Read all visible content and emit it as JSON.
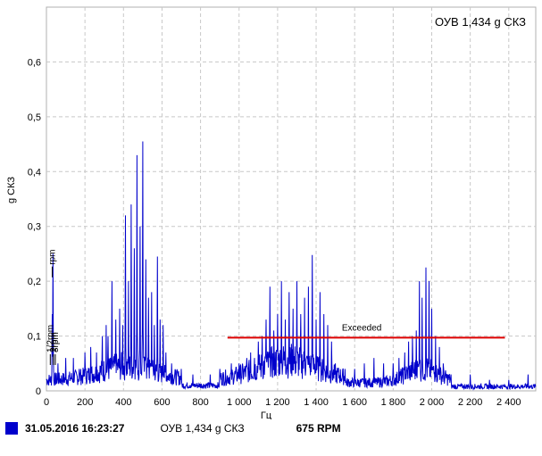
{
  "header": {
    "overall_label": "ОУВ 1,434 g СКЗ"
  },
  "status_bar": {
    "date": "31.05.2016 16:23:27",
    "overall": "ОУВ 1,434 g СКЗ",
    "rpm": "675 RPM",
    "swatch_color": "#0000cc"
  },
  "chart_data": {
    "type": "line",
    "xlabel": "Гц",
    "ylabel": "g СКЗ",
    "xlim": [
      0,
      2540
    ],
    "ylim": [
      0,
      0.7
    ],
    "x_ticks": [
      0,
      200,
      400,
      600,
      800,
      1000,
      1200,
      1400,
      1600,
      1800,
      2000,
      2200,
      2400
    ],
    "x_tick_labels": [
      "0",
      "200",
      "400",
      "600",
      "800",
      "1 000",
      "1 200",
      "1 400",
      "1 600",
      "1 800",
      "2 000",
      "2 200",
      "2 400"
    ],
    "y_ticks": [
      0,
      0.1,
      0.2,
      0.3,
      0.4,
      0.5,
      0.6
    ],
    "y_tick_labels": [
      "0",
      "0,1",
      "0,2",
      "0,3",
      "0,4",
      "0,5",
      "0,6"
    ],
    "grid": true,
    "series_color": "#0000cc",
    "threshold": {
      "label": "Exceeded",
      "y": 0.097,
      "x_start": 940,
      "x_end": 2380,
      "color": "#dd0000"
    },
    "markers": [
      {
        "label": "rpm",
        "x": 30,
        "y": 0.23
      },
      {
        "label": "1/2rpm",
        "x": 20,
        "y": 0.07
      },
      {
        "label": "2rpm",
        "x": 36,
        "y": 0.07
      },
      {
        "label": "3rpm",
        "x": 46,
        "y": 0.07
      }
    ],
    "peaks": [
      [
        30,
        0.14
      ],
      [
        34,
        0.25
      ],
      [
        60,
        0.05
      ],
      [
        100,
        0.06
      ],
      [
        140,
        0.06
      ],
      [
        170,
        0.04
      ],
      [
        200,
        0.07
      ],
      [
        230,
        0.08
      ],
      [
        260,
        0.07
      ],
      [
        290,
        0.1
      ],
      [
        310,
        0.12
      ],
      [
        320,
        0.1
      ],
      [
        340,
        0.2
      ],
      [
        360,
        0.13
      ],
      [
        380,
        0.15
      ],
      [
        395,
        0.12
      ],
      [
        410,
        0.32
      ],
      [
        425,
        0.2
      ],
      [
        440,
        0.34
      ],
      [
        455,
        0.26
      ],
      [
        470,
        0.43
      ],
      [
        485,
        0.3
      ],
      [
        500,
        0.455
      ],
      [
        515,
        0.24
      ],
      [
        530,
        0.17
      ],
      [
        545,
        0.18
      ],
      [
        560,
        0.12
      ],
      [
        575,
        0.245
      ],
      [
        590,
        0.13
      ],
      [
        605,
        0.12
      ],
      [
        620,
        0.07
      ],
      [
        650,
        0.05
      ],
      [
        700,
        0.04
      ],
      [
        760,
        0.03
      ],
      [
        850,
        0.03
      ],
      [
        900,
        0.04
      ],
      [
        960,
        0.05
      ],
      [
        1000,
        0.05
      ],
      [
        1040,
        0.06
      ],
      [
        1060,
        0.07
      ],
      [
        1080,
        0.06
      ],
      [
        1100,
        0.09
      ],
      [
        1120,
        0.1
      ],
      [
        1140,
        0.13
      ],
      [
        1160,
        0.19
      ],
      [
        1180,
        0.11
      ],
      [
        1200,
        0.14
      ],
      [
        1220,
        0.2
      ],
      [
        1240,
        0.13
      ],
      [
        1260,
        0.18
      ],
      [
        1280,
        0.15
      ],
      [
        1300,
        0.2
      ],
      [
        1320,
        0.14
      ],
      [
        1340,
        0.17
      ],
      [
        1360,
        0.19
      ],
      [
        1380,
        0.248
      ],
      [
        1400,
        0.13
      ],
      [
        1420,
        0.18
      ],
      [
        1440,
        0.14
      ],
      [
        1460,
        0.12
      ],
      [
        1480,
        0.09
      ],
      [
        1500,
        0.05
      ],
      [
        1550,
        0.04
      ],
      [
        1600,
        0.04
      ],
      [
        1650,
        0.05
      ],
      [
        1700,
        0.06
      ],
      [
        1750,
        0.05
      ],
      [
        1800,
        0.05
      ],
      [
        1830,
        0.06
      ],
      [
        1860,
        0.07
      ],
      [
        1880,
        0.09
      ],
      [
        1900,
        0.1
      ],
      [
        1920,
        0.11
      ],
      [
        1935,
        0.2
      ],
      [
        1950,
        0.17
      ],
      [
        1970,
        0.225
      ],
      [
        1985,
        0.2
      ],
      [
        2000,
        0.15
      ],
      [
        2020,
        0.1
      ],
      [
        2040,
        0.08
      ],
      [
        2060,
        0.05
      ],
      [
        2100,
        0.03
      ],
      [
        2200,
        0.03
      ],
      [
        2300,
        0.02
      ],
      [
        2400,
        0.02
      ],
      [
        2500,
        0.03
      ]
    ]
  }
}
